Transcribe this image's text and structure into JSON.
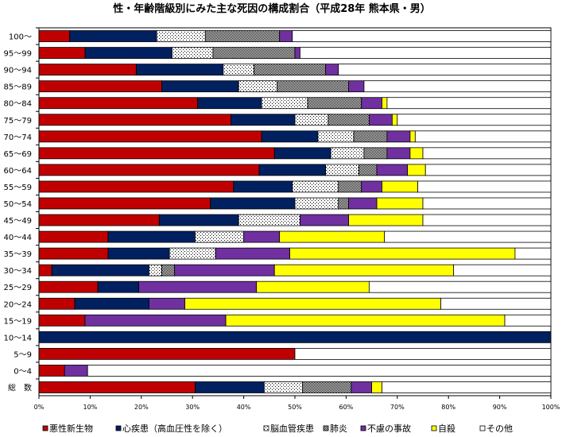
{
  "chart_data": {
    "type": "bar",
    "orientation": "horizontal",
    "stacked": "percent",
    "title": "性・年齢階級別にみた主な死因の構成割合（平成28年 熊本県・男）",
    "categories": [
      "100～",
      "95～99",
      "90～94",
      "85～89",
      "80～84",
      "75～79",
      "70～74",
      "65～69",
      "60～64",
      "55～59",
      "50～54",
      "45～49",
      "40～44",
      "35～39",
      "30～34",
      "25～29",
      "20～24",
      "15～19",
      "10～14",
      "5～9",
      "0～4",
      "総　数"
    ],
    "xlim": [
      0,
      100
    ],
    "xticks": [
      "0%",
      "10%",
      "20%",
      "30%",
      "40%",
      "50%",
      "60%",
      "70%",
      "80%",
      "90%",
      "100%"
    ],
    "legend_position": "bottom",
    "series": [
      {
        "name": "悪性新生物",
        "color": "#c00000",
        "pattern": "solid",
        "values": [
          6,
          9,
          19,
          24,
          31,
          37.5,
          43.5,
          46,
          43,
          38,
          33.5,
          23.5,
          13.5,
          13.5,
          2.5,
          11.5,
          7,
          9,
          0,
          50,
          5,
          30.5
        ]
      },
      {
        "name": "心疾患（高血圧性を除く）",
        "color": "#002060",
        "pattern": "solid",
        "values": [
          17,
          17,
          17,
          15,
          12.5,
          12.5,
          11,
          11,
          13,
          11.5,
          16.5,
          15.5,
          17,
          12,
          19,
          8,
          14.5,
          0,
          100,
          0,
          0,
          13.5
        ]
      },
      {
        "name": "脳血管疾患",
        "color": "#ffffff",
        "pattern": "dots",
        "values": [
          9.5,
          8,
          6,
          7.5,
          9,
          6.5,
          7,
          6.5,
          6.5,
          9,
          8.5,
          12,
          9.5,
          9,
          2.5,
          0,
          0,
          0,
          0,
          0,
          0,
          7.5
        ]
      },
      {
        "name": "肺炎",
        "color": "#808080",
        "pattern": "dense",
        "values": [
          14.5,
          16,
          14,
          14,
          10.5,
          8,
          6.5,
          4.5,
          3.5,
          4.5,
          2,
          0,
          0,
          0,
          2.5,
          0,
          0,
          0,
          0,
          0,
          0,
          9.5
        ]
      },
      {
        "name": "不慮の事故",
        "color": "#7030a0",
        "pattern": "solid",
        "values": [
          2.5,
          1,
          2.5,
          3,
          4,
          4.5,
          4.5,
          4.5,
          6,
          4,
          5.5,
          9.5,
          7,
          14.5,
          19.5,
          23,
          7,
          27.5,
          0,
          0,
          4.5,
          4
        ]
      },
      {
        "name": "自殺",
        "color": "#ffff00",
        "pattern": "solid",
        "values": [
          0,
          0,
          0,
          0,
          1,
          1,
          1,
          2.5,
          3.5,
          7,
          9,
          14.5,
          20.5,
          44,
          35,
          22,
          50,
          54.5,
          0,
          0,
          0,
          2
        ]
      },
      {
        "name": "その他",
        "color": "#ffffff",
        "pattern": "solid",
        "values": [
          50.5,
          49,
          41.5,
          36.5,
          32,
          30,
          26.5,
          25,
          24.5,
          26,
          25,
          25,
          32.5,
          7,
          19,
          35.5,
          21.5,
          9,
          0,
          50,
          90.5,
          33
        ]
      }
    ],
    "grid": false
  }
}
